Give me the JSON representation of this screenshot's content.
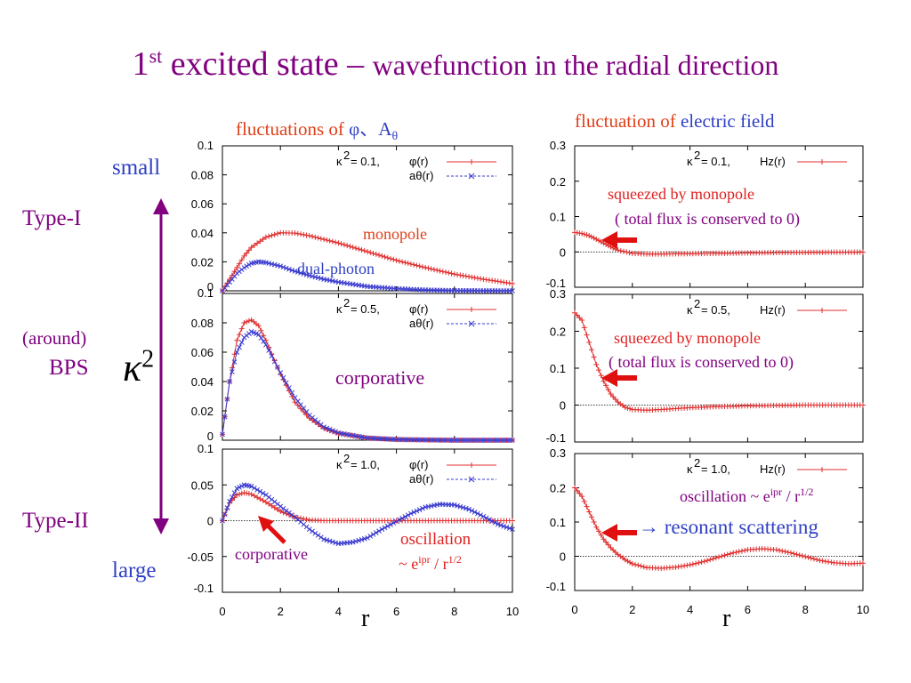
{
  "title": {
    "main": "1",
    "sup": "st",
    "head": " excited state – ",
    "rest": "wavefunction in the radial direction"
  },
  "headers": {
    "left_prefix": "fluctuations of ",
    "left_symbols": "φ、A",
    "left_sub": "θ",
    "right_prefix": "fluctuation of ",
    "right_blue": "electric field"
  },
  "side": {
    "small": "small",
    "type1": "Type-I",
    "around": "(around)",
    "bps": "BPS",
    "kappa": "κ",
    "kappa_sup": "2",
    "type2": "Type-II",
    "large": "large"
  },
  "annotations": {
    "monopole": "monopole",
    "dual_photon": "dual-photon",
    "corporative_mid": "corporative",
    "corporative_low": "corporative",
    "osc_left_1": "oscillation",
    "osc_left_2_pre": "~ e",
    "osc_left_2_sup": "ipr",
    "osc_left_2_mid": " / r",
    "osc_left_2_sup2": "1/2",
    "squeezed1": "squeezed by monopole",
    "flux1": "( total flux is conserved to 0)",
    "squeezed2": "squeezed by monopole",
    "flux2": "( total flux is conserved to 0)",
    "osc_right_pre": "oscillation ~ e",
    "osc_right_sup": "ipr",
    "osc_right_mid": " / r",
    "osc_right_sup2": "1/2",
    "resonant": "→ resonant scattering",
    "xlabel_left": "r",
    "xlabel_right": "r"
  },
  "colors": {
    "phi": "#e03030",
    "a": "#3a3ad0",
    "purple": "#800080",
    "arrow": "#e01010"
  },
  "chart_data": [
    {
      "type": "line",
      "panel": "left-top",
      "legend_kappa": "κ",
      "legend_kappa_sup": "2",
      "legend_value": " = 0.1,",
      "xlim": [
        0,
        10
      ],
      "ylim": [
        0,
        0.1
      ],
      "yticks": [
        "0.1",
        "0.08",
        "0.06",
        "0.04",
        "0.02",
        "0"
      ],
      "xticks": [],
      "series": [
        {
          "name": "φ(r)",
          "x": [
            0,
            0.25,
            0.5,
            0.75,
            1,
            1.5,
            2,
            2.5,
            3,
            3.5,
            4,
            5,
            6,
            7,
            8,
            9,
            10
          ],
          "y": [
            0,
            0.008,
            0.016,
            0.024,
            0.03,
            0.037,
            0.04,
            0.0398,
            0.038,
            0.0355,
            0.033,
            0.027,
            0.021,
            0.016,
            0.0115,
            0.008,
            0.005
          ]
        },
        {
          "name": "aθ(r)",
          "x": [
            0,
            0.25,
            0.5,
            0.75,
            1,
            1.25,
            1.5,
            2,
            2.5,
            3,
            3.5,
            4,
            5,
            6,
            7,
            8,
            9,
            10
          ],
          "y": [
            0,
            0.006,
            0.012,
            0.016,
            0.019,
            0.02,
            0.0195,
            0.017,
            0.0135,
            0.0105,
            0.008,
            0.006,
            0.003,
            0.0015,
            0.0006,
            0.0002,
            0.0001,
            0
          ]
        }
      ]
    },
    {
      "type": "line",
      "panel": "left-mid",
      "legend_kappa": "κ",
      "legend_kappa_sup": "2",
      "legend_value": " = 0.5,",
      "xlim": [
        0,
        10
      ],
      "ylim": [
        0,
        0.1
      ],
      "yticks": [
        "0.1",
        "0.08",
        "0.06",
        "0.04",
        "0.02",
        "0"
      ],
      "xticks": [],
      "series": [
        {
          "name": "φ(r)",
          "x": [
            0,
            0.25,
            0.5,
            0.75,
            1,
            1.25,
            1.5,
            2,
            2.5,
            3,
            3.5,
            4,
            5,
            6,
            7,
            8,
            9,
            10
          ],
          "y": [
            0.004,
            0.04,
            0.068,
            0.08,
            0.082,
            0.078,
            0.068,
            0.045,
            0.026,
            0.015,
            0.008,
            0.0045,
            0.0015,
            0.0005,
            0.0002,
            0,
            0,
            0
          ]
        },
        {
          "name": "aθ(r)",
          "x": [
            0,
            0.25,
            0.5,
            0.75,
            1,
            1.25,
            1.5,
            2,
            2.5,
            3,
            3.5,
            4,
            5,
            6,
            7,
            8,
            9,
            10
          ],
          "y": [
            0.004,
            0.04,
            0.06,
            0.07,
            0.074,
            0.072,
            0.065,
            0.046,
            0.029,
            0.017,
            0.009,
            0.005,
            0.0015,
            0.0005,
            0.0002,
            0,
            0,
            0
          ]
        }
      ]
    },
    {
      "type": "line",
      "panel": "left-bottom",
      "legend_kappa": "κ",
      "legend_kappa_sup": "2",
      "legend_value": " = 1.0,",
      "xlim": [
        0,
        10
      ],
      "ylim": [
        -0.1,
        0.1
      ],
      "yticks": [
        "0.1",
        "0.05",
        "0",
        "-0.05",
        "-0.1"
      ],
      "xticks": [
        "0",
        "2",
        "4",
        "6",
        "8",
        "10"
      ],
      "series": [
        {
          "name": "φ(r)",
          "x": [
            0,
            0.25,
            0.5,
            0.75,
            1,
            1.5,
            2,
            2.5,
            3,
            3.5,
            4,
            5,
            6,
            7,
            8,
            9,
            10
          ],
          "y": [
            0,
            0.025,
            0.036,
            0.039,
            0.037,
            0.026,
            0.013,
            0.005,
            0.001,
            0,
            0,
            0,
            0,
            0,
            0,
            0,
            0
          ]
        },
        {
          "name": "aθ(r)",
          "x": [
            0,
            0.25,
            0.5,
            0.75,
            1,
            1.5,
            2,
            2.5,
            3,
            3.5,
            4,
            4.5,
            5,
            5.5,
            6,
            6.5,
            7,
            7.5,
            8,
            8.5,
            9,
            9.5,
            10
          ],
          "y": [
            0,
            0.027,
            0.045,
            0.05,
            0.048,
            0.036,
            0.02,
            0.005,
            -0.012,
            -0.026,
            -0.032,
            -0.03,
            -0.024,
            -0.012,
            -0.001,
            0.01,
            0.019,
            0.023,
            0.022,
            0.016,
            0.006,
            -0.005,
            -0.012
          ]
        }
      ]
    },
    {
      "type": "line",
      "panel": "right-top",
      "legend_kappa": "κ",
      "legend_kappa_sup": "2",
      "legend_value": " = 0.1,",
      "xlim": [
        0,
        10
      ],
      "ylim": [
        -0.1,
        0.3
      ],
      "yticks": [
        "0.3",
        "0.2",
        "0.1",
        "0",
        "-0.1"
      ],
      "xticks": [],
      "series": [
        {
          "name": "Hz(r)",
          "x": [
            0,
            0.25,
            0.5,
            0.75,
            1,
            1.25,
            1.5,
            2,
            2.5,
            3,
            4,
            5,
            6,
            7,
            8,
            9,
            10
          ],
          "y": [
            0.055,
            0.052,
            0.046,
            0.036,
            0.025,
            0.014,
            0.005,
            -0.004,
            -0.006,
            -0.006,
            -0.005,
            -0.004,
            -0.003,
            -0.002,
            -0.0015,
            -0.001,
            -0.001
          ]
        }
      ]
    },
    {
      "type": "line",
      "panel": "right-mid",
      "legend_kappa": "κ",
      "legend_kappa_sup": "2",
      "legend_value": " = 0.5,",
      "xlim": [
        0,
        10
      ],
      "ylim": [
        -0.1,
        0.3
      ],
      "yticks": [
        "0.3",
        "0.2",
        "0.1",
        "0",
        "-0.1"
      ],
      "xticks": [],
      "series": [
        {
          "name": "Hz(r)",
          "x": [
            0,
            0.25,
            0.5,
            0.75,
            1,
            1.25,
            1.5,
            1.75,
            2,
            2.5,
            3,
            4,
            5,
            6,
            7,
            8,
            9,
            10
          ],
          "y": [
            0.25,
            0.23,
            0.17,
            0.11,
            0.065,
            0.03,
            0.008,
            -0.006,
            -0.012,
            -0.014,
            -0.012,
            -0.007,
            -0.004,
            -0.002,
            -0.001,
            0,
            0,
            0
          ]
        }
      ]
    },
    {
      "type": "line",
      "panel": "right-bottom",
      "legend_kappa": "κ",
      "legend_kappa_sup": "2",
      "legend_value": " = 1.0,",
      "xlim": [
        0,
        10
      ],
      "ylim": [
        -0.1,
        0.3
      ],
      "yticks": [
        "0.3",
        "0.2",
        "0.1",
        "0",
        "-0.1"
      ],
      "xticks": [
        "0",
        "2",
        "4",
        "6",
        "8",
        "10"
      ],
      "series": [
        {
          "name": "Hz(r)",
          "x": [
            0,
            0.25,
            0.5,
            0.75,
            1,
            1.25,
            1.5,
            1.75,
            2,
            2.5,
            3,
            3.5,
            4,
            4.5,
            5,
            5.5,
            6,
            6.5,
            7,
            7.5,
            8,
            8.5,
            9,
            9.5,
            10
          ],
          "y": [
            0.2,
            0.175,
            0.13,
            0.085,
            0.05,
            0.025,
            0.005,
            -0.01,
            -0.022,
            -0.033,
            -0.035,
            -0.032,
            -0.025,
            -0.015,
            -0.002,
            0.01,
            0.019,
            0.022,
            0.019,
            0.01,
            -0.001,
            -0.012,
            -0.019,
            -0.022,
            -0.02
          ]
        }
      ]
    }
  ]
}
